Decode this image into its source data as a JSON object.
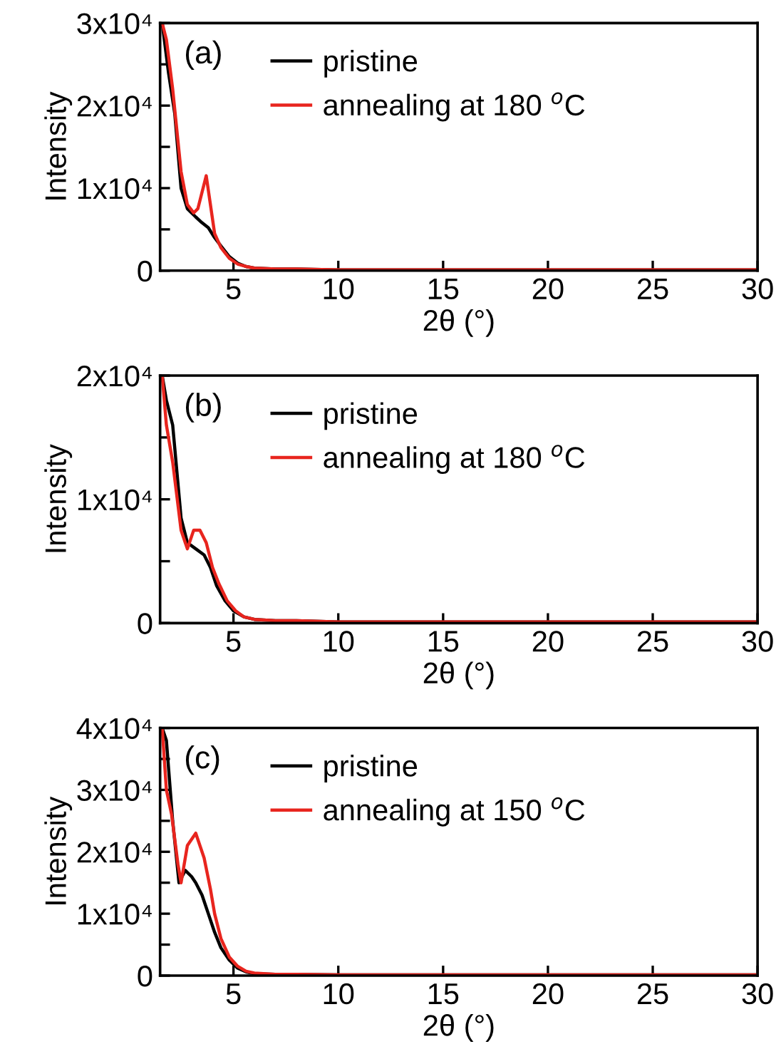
{
  "chart_data": [
    {
      "type": "line",
      "xlabel": "2θ (°)",
      "ylabel": "Intensity",
      "annotations": [
        "(a)"
      ],
      "legend": "top",
      "grid": false,
      "xlim": [
        1.5,
        30
      ],
      "xticks": [
        5,
        10,
        15,
        20,
        25,
        30
      ],
      "ylim": [
        0,
        30000
      ],
      "yticks": [
        {
          "value": 0,
          "label": "0"
        },
        {
          "value": 5000,
          "label": null
        },
        {
          "value": 10000,
          "label": "1x10⁴"
        },
        {
          "value": 15000,
          "label": null
        },
        {
          "value": 20000,
          "label": "2x10⁴"
        },
        {
          "value": 25000,
          "label": null
        },
        {
          "value": 30000,
          "label": "3x10⁴"
        }
      ],
      "series": [
        {
          "name": "pristine",
          "color": "#000000",
          "x": [
            1.6,
            1.9,
            2.2,
            2.5,
            2.8,
            3.2,
            3.5,
            3.8,
            4.1,
            4.4,
            4.8,
            5.2,
            5.6,
            6,
            7,
            8,
            10,
            15,
            20,
            25,
            30
          ],
          "values": [
            30000,
            24000,
            19000,
            10000,
            7500,
            6500,
            5800,
            5200,
            4000,
            3000,
            1700,
            900,
            500,
            300,
            200,
            200,
            100,
            100,
            100,
            100,
            100
          ]
        },
        {
          "name": "annealing at 180 $^{o}$C",
          "color": "#e8251e",
          "x": [
            1.6,
            1.8,
            2.1,
            2.5,
            2.8,
            3.1,
            3.3,
            3.5,
            3.7,
            3.9,
            4.1,
            4.4,
            4.8,
            5.2,
            5.6,
            6,
            7,
            8,
            10,
            15,
            20,
            25,
            30
          ],
          "values": [
            30000,
            28000,
            22000,
            12000,
            8000,
            7000,
            7500,
            9500,
            11500,
            8000,
            4500,
            2800,
            1500,
            800,
            500,
            300,
            200,
            200,
            100,
            100,
            100,
            100,
            100
          ]
        }
      ]
    },
    {
      "type": "line",
      "xlabel": "2θ (°)",
      "ylabel": "Intensity",
      "annotations": [
        "(b)"
      ],
      "legend": "top",
      "grid": false,
      "xlim": [
        1.5,
        30
      ],
      "xticks": [
        5,
        10,
        15,
        20,
        25,
        30
      ],
      "ylim": [
        0,
        20000
      ],
      "yticks": [
        {
          "value": 0,
          "label": "0"
        },
        {
          "value": 5000,
          "label": null
        },
        {
          "value": 10000,
          "label": "1x10⁴"
        },
        {
          "value": 15000,
          "label": null
        },
        {
          "value": 20000,
          "label": "2x10⁴"
        }
      ],
      "series": [
        {
          "name": "pristine",
          "color": "#000000",
          "x": [
            1.6,
            1.8,
            2.1,
            2.5,
            2.8,
            3.2,
            3.6,
            3.9,
            4.2,
            4.6,
            5,
            5.5,
            6,
            7,
            8,
            10,
            15,
            20,
            25,
            30
          ],
          "values": [
            20000,
            18000,
            16000,
            8500,
            6500,
            6000,
            5500,
            4500,
            3000,
            1800,
            1000,
            500,
            300,
            200,
            200,
            100,
            100,
            100,
            100,
            100
          ]
        },
        {
          "name": "annealing at 180 $^{o}$C",
          "color": "#e8251e",
          "x": [
            1.6,
            1.8,
            2.1,
            2.5,
            2.8,
            3.1,
            3.4,
            3.7,
            4,
            4.3,
            4.7,
            5.1,
            5.5,
            6,
            7,
            8,
            10,
            15,
            20,
            25,
            30
          ],
          "values": [
            20000,
            16000,
            13000,
            7500,
            6000,
            7500,
            7500,
            6500,
            4500,
            3200,
            1800,
            1000,
            500,
            300,
            200,
            200,
            100,
            100,
            100,
            100,
            100
          ]
        }
      ]
    },
    {
      "type": "line",
      "xlabel": "2θ (°)",
      "ylabel": "Intensity",
      "annotations": [
        "(c)"
      ],
      "legend": "top",
      "grid": false,
      "xlim": [
        1.5,
        30
      ],
      "xticks": [
        5,
        10,
        15,
        20,
        25,
        30
      ],
      "ylim": [
        0,
        40000
      ],
      "yticks": [
        {
          "value": 0,
          "label": "0"
        },
        {
          "value": 5000,
          "label": null
        },
        {
          "value": 10000,
          "label": "1x10⁴"
        },
        {
          "value": 15000,
          "label": null
        },
        {
          "value": 20000,
          "label": "2x10⁴"
        },
        {
          "value": 25000,
          "label": null
        },
        {
          "value": 30000,
          "label": "3x10⁴"
        },
        {
          "value": 35000,
          "label": null
        },
        {
          "value": 40000,
          "label": "4x10⁴"
        }
      ],
      "series": [
        {
          "name": "pristine",
          "color": "#000000",
          "x": [
            1.6,
            1.8,
            2.1,
            2.4,
            2.7,
            3,
            3.2,
            3.5,
            3.8,
            4.1,
            4.4,
            4.8,
            5.2,
            5.6,
            6,
            7,
            8,
            10,
            15,
            20,
            25,
            30
          ],
          "values": [
            40000,
            38000,
            25000,
            15000,
            17000,
            16000,
            15000,
            13000,
            10000,
            7000,
            4500,
            2500,
            1200,
            600,
            300,
            200,
            200,
            100,
            100,
            100,
            100,
            100
          ]
        },
        {
          "name": "annealing at 150 $^{o}$C",
          "color": "#e8251e",
          "x": [
            1.6,
            1.8,
            2.05,
            2.35,
            2.5,
            2.8,
            3.2,
            3.6,
            3.9,
            4.1,
            4.4,
            4.8,
            5.2,
            5.6,
            6,
            7,
            8,
            10,
            15,
            20,
            25,
            30
          ],
          "values": [
            40000,
            30000,
            26000,
            18000,
            15000,
            21000,
            23000,
            19000,
            14000,
            10000,
            6000,
            3000,
            1500,
            700,
            400,
            200,
            200,
            100,
            100,
            100,
            100,
            100
          ]
        }
      ]
    }
  ]
}
